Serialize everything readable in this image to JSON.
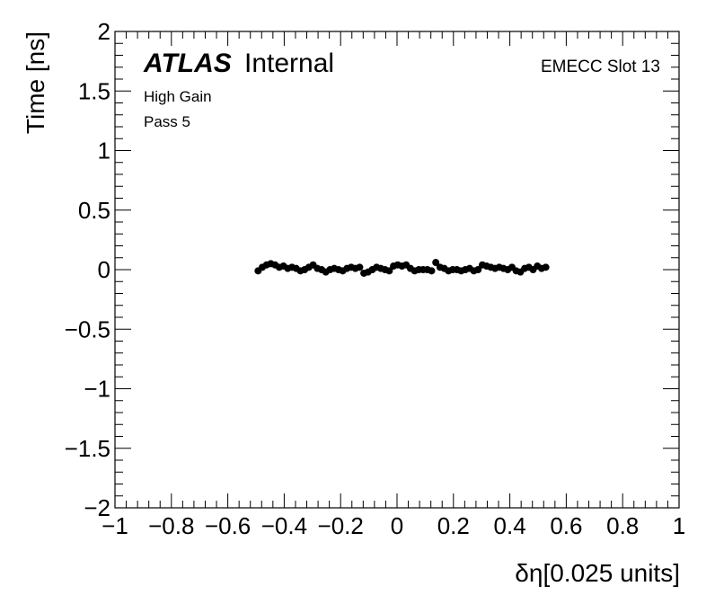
{
  "chart_data": {
    "type": "scatter",
    "xlabel": "δη[0.025 units]",
    "ylabel": "Time [ns]",
    "xlim": [
      -1,
      1
    ],
    "ylim": [
      -2,
      2
    ],
    "x_major_ticks": [
      -1,
      -0.8,
      -0.6,
      -0.4,
      -0.2,
      0,
      0.2,
      0.4,
      0.6,
      0.8,
      1
    ],
    "x_tick_labels": [
      "−1",
      "−0.8",
      "−0.6",
      "−0.4",
      "−0.2",
      "0",
      "0.2",
      "0.4",
      "0.6",
      "0.8",
      "1"
    ],
    "y_major_ticks": [
      -2,
      -1.5,
      -1,
      -0.5,
      0,
      0.5,
      1,
      1.5,
      2
    ],
    "y_tick_labels": [
      "−2",
      "−1.5",
      "−1",
      "−0.5",
      "0",
      "0.5",
      "1",
      "1.5",
      "2"
    ],
    "grid": false,
    "marker_color": "#000000",
    "annotations": {
      "atlas": "ATLAS",
      "internal": "Internal",
      "gain": "High Gain",
      "pass": "Pass 5",
      "slot": "EMECC Slot 13"
    },
    "points": {
      "x": [
        -0.4925,
        -0.4775,
        -0.4625,
        -0.4475,
        -0.4325,
        -0.4175,
        -0.4025,
        -0.3875,
        -0.3725,
        -0.3575,
        -0.3425,
        -0.3275,
        -0.3125,
        -0.2975,
        -0.2825,
        -0.2675,
        -0.2525,
        -0.2375,
        -0.2225,
        -0.2075,
        -0.1925,
        -0.1775,
        -0.1625,
        -0.1475,
        -0.1325,
        -0.1175,
        -0.1025,
        -0.0875,
        -0.0725,
        -0.0575,
        -0.0425,
        -0.0275,
        -0.0125,
        0.0025,
        0.0175,
        0.0325,
        0.0475,
        0.0625,
        0.0775,
        0.0925,
        0.1075,
        0.1225,
        0.1375,
        0.1525,
        0.1675,
        0.1825,
        0.1975,
        0.2125,
        0.2275,
        0.2425,
        0.2575,
        0.2725,
        0.2875,
        0.3025,
        0.3175,
        0.3325,
        0.3475,
        0.3625,
        0.3775,
        0.3925,
        0.4075,
        0.4225,
        0.4375,
        0.4525,
        0.4675,
        0.4825,
        0.4975,
        0.5125,
        0.5275
      ],
      "y": [
        -0.01,
        0.02,
        0.04,
        0.05,
        0.04,
        0.02,
        0.03,
        0.01,
        0.02,
        0.01,
        -0.01,
        0.0,
        0.02,
        0.04,
        0.01,
        0.0,
        -0.02,
        0.0,
        0.01,
        0.0,
        -0.01,
        0.01,
        0.02,
        0.01,
        0.02,
        -0.03,
        -0.02,
        0.0,
        0.02,
        0.01,
        0.0,
        -0.01,
        0.03,
        0.04,
        0.03,
        0.04,
        0.01,
        -0.01,
        0.0,
        0.0,
        0.0,
        -0.01,
        0.06,
        0.02,
        0.01,
        -0.01,
        0.0,
        0.0,
        -0.01,
        0.0,
        0.01,
        -0.01,
        0.0,
        0.04,
        0.03,
        0.02,
        0.01,
        0.02,
        0.01,
        0.0,
        0.02,
        -0.01,
        -0.02,
        0.01,
        0.02,
        0.0,
        0.03,
        0.01,
        0.02
      ]
    }
  }
}
